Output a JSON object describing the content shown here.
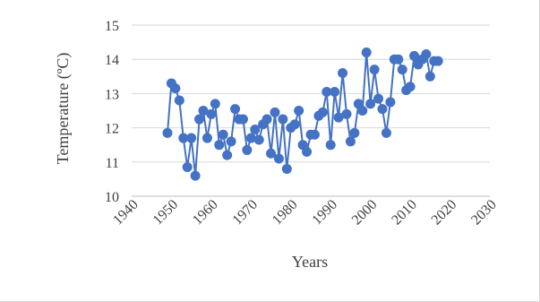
{
  "chart_data": {
    "type": "line",
    "title": "",
    "xlabel": "Years",
    "ylabel": "Temperature (ºC)",
    "xlim": [
      1940,
      2030
    ],
    "ylim": [
      10,
      15
    ],
    "xticks": [
      1940,
      1950,
      1960,
      1970,
      1980,
      1990,
      2000,
      2010,
      2020,
      2030
    ],
    "yticks": [
      10,
      11,
      12,
      13,
      14,
      15
    ],
    "grid": "horizontal",
    "legend": "none",
    "colors": {
      "series": "#4472C4",
      "grid": "#d9d9d9",
      "axis": "#bfbfbf",
      "text": "#404040"
    },
    "series": [
      {
        "x": [
          1949,
          1950,
          1951,
          1952,
          1953,
          1954,
          1955,
          1956,
          1957,
          1958,
          1959,
          1960,
          1961,
          1962,
          1963,
          1964,
          1965,
          1966,
          1967,
          1968,
          1969,
          1970,
          1971,
          1972,
          1973,
          1974,
          1975,
          1976,
          1977,
          1978,
          1979,
          1980,
          1981,
          1982,
          1983,
          1984,
          1985,
          1986,
          1987,
          1988,
          1989,
          1990,
          1991,
          1992,
          1993,
          1994,
          1995,
          1996,
          1997,
          1998,
          1999,
          2000,
          2001,
          2002,
          2003,
          2004,
          2005,
          2006,
          2007,
          2008,
          2009,
          2010,
          2011,
          2012,
          2013,
          2014,
          2015,
          2016,
          2017
        ],
        "y": [
          11.85,
          13.3,
          13.15,
          12.8,
          11.7,
          10.85,
          11.7,
          10.6,
          12.25,
          12.5,
          11.7,
          12.4,
          12.7,
          11.5,
          11.8,
          11.2,
          11.6,
          12.55,
          12.25,
          12.25,
          11.35,
          11.7,
          11.95,
          11.65,
          12.1,
          12.25,
          11.25,
          12.45,
          11.1,
          12.25,
          10.8,
          12.0,
          12.1,
          12.5,
          11.5,
          11.3,
          11.8,
          11.8,
          12.35,
          12.45,
          13.05,
          11.5,
          13.05,
          12.3,
          13.6,
          12.4,
          11.6,
          11.85,
          12.7,
          12.5,
          14.2,
          12.7,
          13.7,
          12.85,
          12.55,
          11.85,
          12.75,
          14.0,
          14.0,
          13.7,
          13.1,
          13.2,
          14.1,
          13.85,
          14.0,
          14.15,
          13.5,
          13.95,
          13.95
        ]
      }
    ]
  }
}
